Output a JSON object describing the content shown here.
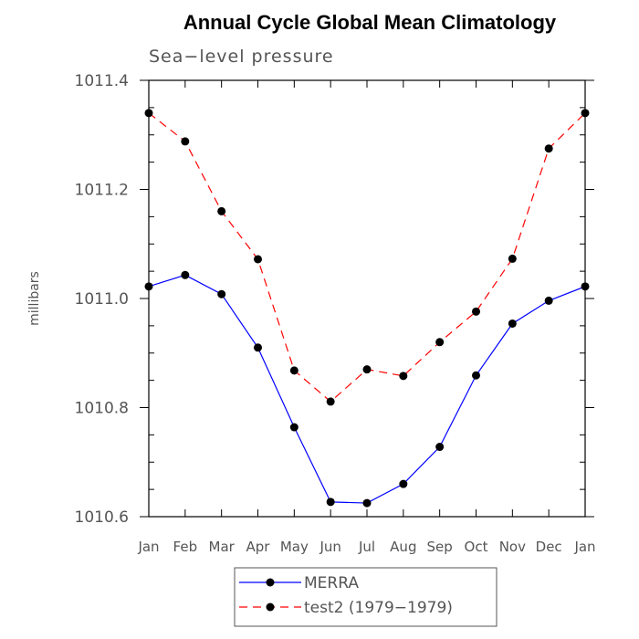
{
  "chart_data": {
    "type": "line",
    "title": "Annual Cycle Global Mean Climatology",
    "subtitle": "Sea−level pressure",
    "ylabel": "millibars",
    "xlabel": "",
    "ylim": [
      1010.6,
      1011.4
    ],
    "yticks": [
      "1010.6",
      "1010.8",
      "1011.0",
      "1011.2",
      "1011.4"
    ],
    "categories": [
      "Jan",
      "Feb",
      "Mar",
      "Apr",
      "May",
      "Jun",
      "Jul",
      "Aug",
      "Sep",
      "Oct",
      "Nov",
      "Dec",
      "Jan"
    ],
    "series": [
      {
        "name": "MERRA",
        "color": "#0000ff",
        "style": "solid",
        "values": [
          1011.022,
          1011.043,
          1011.008,
          1010.91,
          1010.764,
          1010.627,
          1010.625,
          1010.66,
          1010.728,
          1010.859,
          1010.954,
          1010.996,
          1011.022
        ]
      },
      {
        "name": "test2 (1979−1979)",
        "color": "#ff0000",
        "style": "dashed",
        "values": [
          1011.34,
          1011.288,
          1011.16,
          1011.072,
          1010.868,
          1010.811,
          1010.87,
          1010.858,
          1010.92,
          1010.976,
          1011.073,
          1011.275,
          1011.34
        ]
      }
    ],
    "legend_position": "bottom"
  }
}
